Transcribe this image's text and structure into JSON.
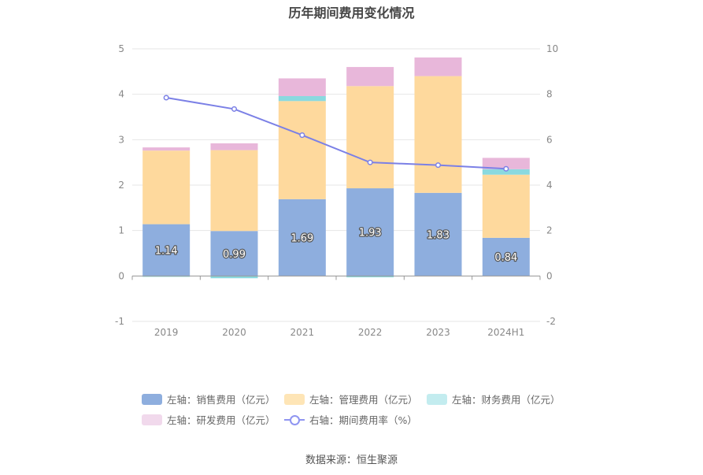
{
  "chart_data": {
    "type": "bar",
    "title": "历年期间费用变化情况",
    "categories": [
      "2019",
      "2020",
      "2021",
      "2022",
      "2023",
      "2024H1"
    ],
    "left_axis": {
      "ylim": [
        -1,
        5
      ],
      "ticks": [
        "-1",
        "0",
        "1",
        "2",
        "3",
        "4",
        "5"
      ]
    },
    "right_axis": {
      "ylim": [
        -2,
        10
      ],
      "ticks": [
        "-2",
        "0",
        "2",
        "4",
        "6",
        "8",
        "10"
      ]
    },
    "stacked": true,
    "series": [
      {
        "name": "左轴：销售费用（亿元）",
        "axis": "left",
        "color": "#8eaede",
        "values": [
          1.14,
          0.99,
          1.69,
          1.93,
          1.83,
          0.84
        ],
        "labels": [
          "1.14",
          "0.99",
          "1.69",
          "1.93",
          "1.83",
          "0.84"
        ]
      },
      {
        "name": "左轴：管理费用（亿元）",
        "axis": "left",
        "color": "#fed99d",
        "values": [
          1.62,
          1.78,
          2.16,
          2.25,
          2.57,
          1.39
        ]
      },
      {
        "name": "左轴：财务费用（亿元）",
        "axis": "left",
        "color": "#8ad9df",
        "values": [
          -0.02,
          -0.05,
          0.11,
          -0.03,
          0.0,
          0.12
        ]
      },
      {
        "name": "左轴：研发费用（亿元）",
        "axis": "left",
        "color": "#e8b7da",
        "values": [
          0.07,
          0.15,
          0.39,
          0.42,
          0.41,
          0.25
        ]
      },
      {
        "name": "右轴：期间费用率（%）",
        "axis": "right",
        "type": "line",
        "color": "#7b80e6",
        "values": [
          7.85,
          7.35,
          6.2,
          5.0,
          4.88,
          4.72
        ]
      }
    ]
  },
  "source_text": "数据来源：恒生聚源"
}
